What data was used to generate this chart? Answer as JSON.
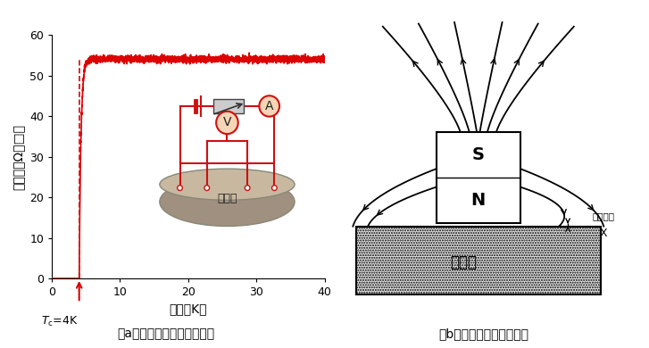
{
  "panel_a_caption": "（a）临界温度以下电阻消失",
  "panel_b_caption": "（b）抗磁性：磁力线消失",
  "ylabel_a": "电阻率（Ω／□）",
  "xlabel_a": "温度（K）",
  "tc_value": 4.0,
  "ylim": [
    0,
    60
  ],
  "xlim": [
    0,
    40
  ],
  "yticks": [
    0,
    10,
    20,
    30,
    40,
    50,
    60
  ],
  "xticks": [
    0,
    10,
    20,
    30,
    40
  ],
  "curve_color": "#dd0000",
  "inset_label": "超导体",
  "magnet_label": "超导体",
  "floating_label": "悬浮高度",
  "x_label": "X",
  "S_label": "S",
  "N_label": "N",
  "bg_color": "#ffffff",
  "inset_bg": "#dce9f5"
}
